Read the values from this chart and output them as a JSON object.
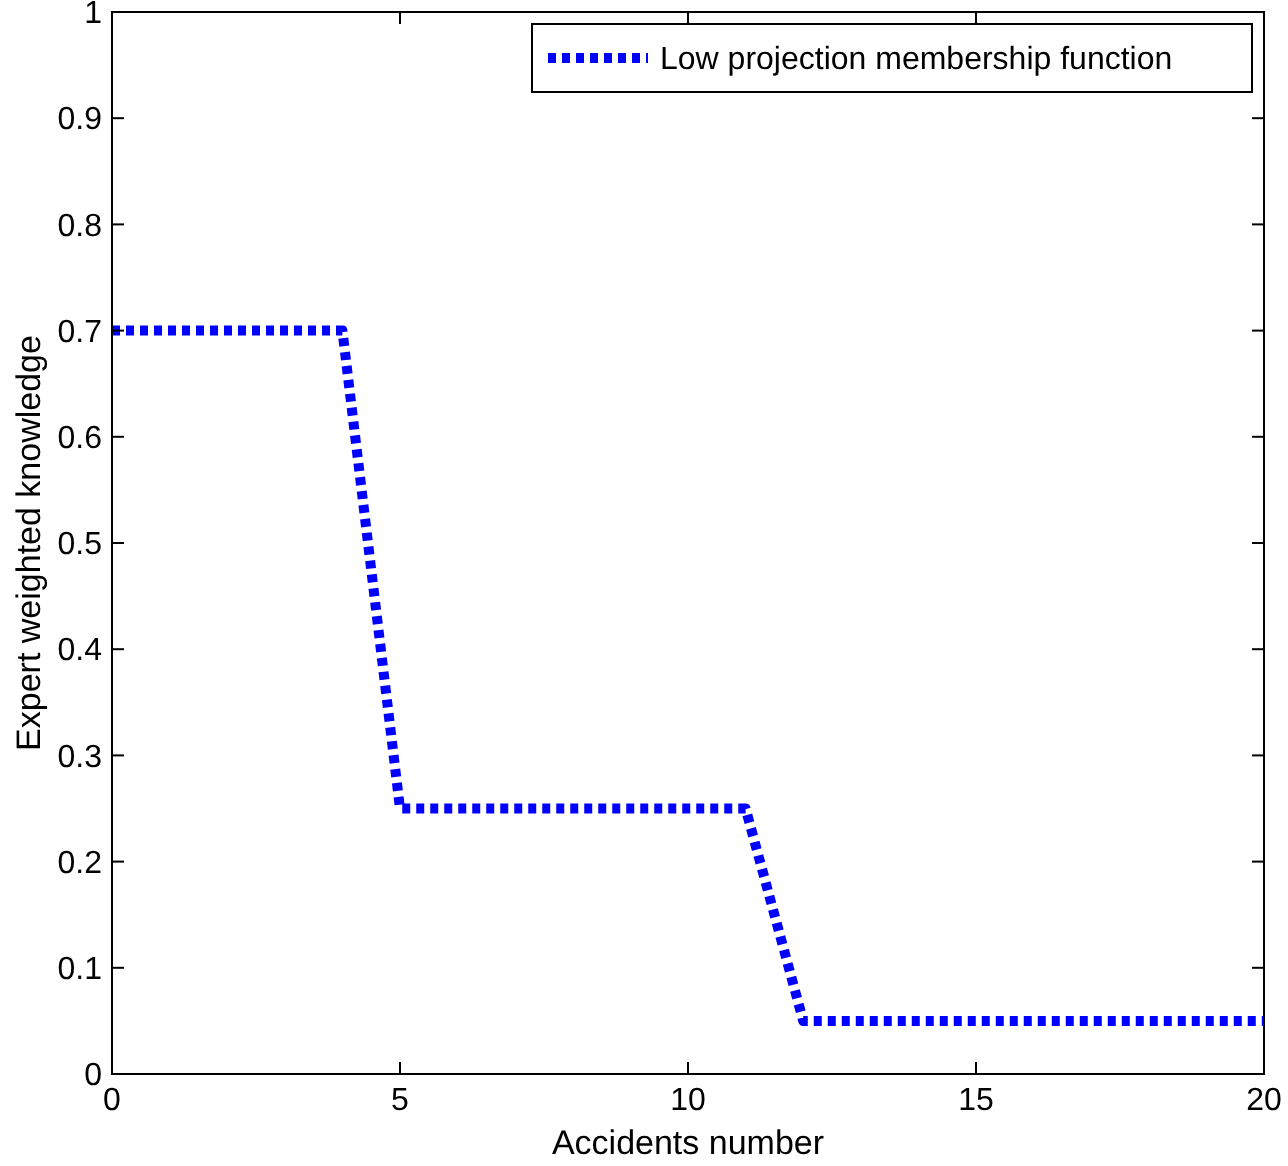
{
  "chart_data": {
    "type": "line",
    "xlabel": "Accidents number",
    "ylabel": "Expert weighted knowledge",
    "x": [
      0,
      4,
      5,
      11,
      12,
      20
    ],
    "series": [
      {
        "name": "Low projection membership function",
        "color": "#0000ff",
        "values": [
          0.7,
          0.7,
          0.25,
          0.25,
          0.05,
          0.05
        ]
      }
    ],
    "xlim": [
      0,
      20
    ],
    "xticks": [
      0,
      5,
      10,
      15,
      20
    ],
    "ylim": [
      0,
      1
    ],
    "yticks": [
      0,
      0.1,
      0.2,
      0.3,
      0.4,
      0.5,
      0.6,
      0.7,
      0.8,
      0.9,
      1
    ],
    "line_style": "dotted",
    "legend": "top right",
    "grid": false
  }
}
